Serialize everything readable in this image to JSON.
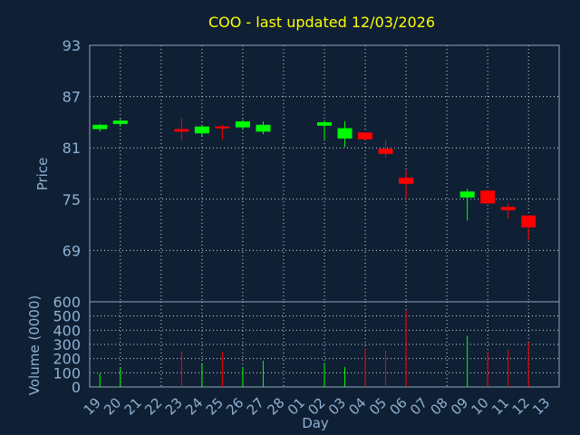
{
  "chart_data": {
    "type": "candlestick",
    "title": "COO - last updated 12/03/2026",
    "price_panel": {
      "ylabel": "Price",
      "ylim": [
        63,
        93
      ],
      "yticks": [
        93,
        87,
        81,
        75,
        69
      ]
    },
    "volume_panel": {
      "ylabel": "Volume (0000)",
      "ylim": [
        0,
        600
      ],
      "yticks": [
        0,
        100,
        200,
        300,
        400,
        500,
        600
      ]
    },
    "xlabel": "Day",
    "x_tick_labels": [
      "19",
      "20",
      "21",
      "22",
      "23",
      "24",
      "25",
      "26",
      "27",
      "28",
      "01",
      "02",
      "03",
      "04",
      "05",
      "06",
      "07",
      "08",
      "09",
      "10",
      "11",
      "12",
      "13"
    ],
    "grid": true,
    "up_color": "#00ff00",
    "down_color": "#ff0000",
    "candles": [
      {
        "day": "19",
        "open": 83.2,
        "high": 83.8,
        "low": 82.9,
        "close": 83.7,
        "volume": 95
      },
      {
        "day": "20",
        "open": 83.8,
        "high": 84.4,
        "low": 83.5,
        "close": 84.2,
        "volume": 140
      },
      {
        "day": "23",
        "open": 83.2,
        "high": 84.5,
        "low": 81.9,
        "close": 82.9,
        "volume": 250
      },
      {
        "day": "24",
        "open": 82.7,
        "high": 83.7,
        "low": 82.4,
        "close": 83.5,
        "volume": 160
      },
      {
        "day": "25",
        "open": 83.5,
        "high": 83.7,
        "low": 82.0,
        "close": 83.4,
        "volume": 245
      },
      {
        "day": "26",
        "open": 83.4,
        "high": 84.3,
        "low": 83.2,
        "close": 84.1,
        "volume": 140
      },
      {
        "day": "27",
        "open": 82.9,
        "high": 84.1,
        "low": 82.6,
        "close": 83.7,
        "volume": 185
      },
      {
        "day": "02",
        "open": 83.6,
        "high": 84.2,
        "low": 82.0,
        "close": 84.0,
        "volume": 170
      },
      {
        "day": "03",
        "open": 82.1,
        "high": 84.1,
        "low": 81.1,
        "close": 83.3,
        "volume": 140
      },
      {
        "day": "04",
        "open": 82.8,
        "high": 82.8,
        "low": 81.9,
        "close": 82.0,
        "volume": 270
      },
      {
        "day": "05",
        "open": 80.9,
        "high": 81.9,
        "low": 79.9,
        "close": 80.3,
        "volume": 255
      },
      {
        "day": "06",
        "open": 77.5,
        "high": 78.4,
        "low": 75.0,
        "close": 76.8,
        "volume": 540
      },
      {
        "day": "09",
        "open": 75.2,
        "high": 76.2,
        "low": 72.5,
        "close": 75.9,
        "volume": 360
      },
      {
        "day": "10",
        "open": 76.0,
        "high": 76.1,
        "low": 74.5,
        "close": 74.5,
        "volume": 245
      },
      {
        "day": "11",
        "open": 74.1,
        "high": 74.5,
        "low": 72.7,
        "close": 73.7,
        "volume": 265
      },
      {
        "day": "12",
        "open": 73.1,
        "high": 73.1,
        "low": 70.2,
        "close": 71.7,
        "volume": 315
      }
    ]
  }
}
